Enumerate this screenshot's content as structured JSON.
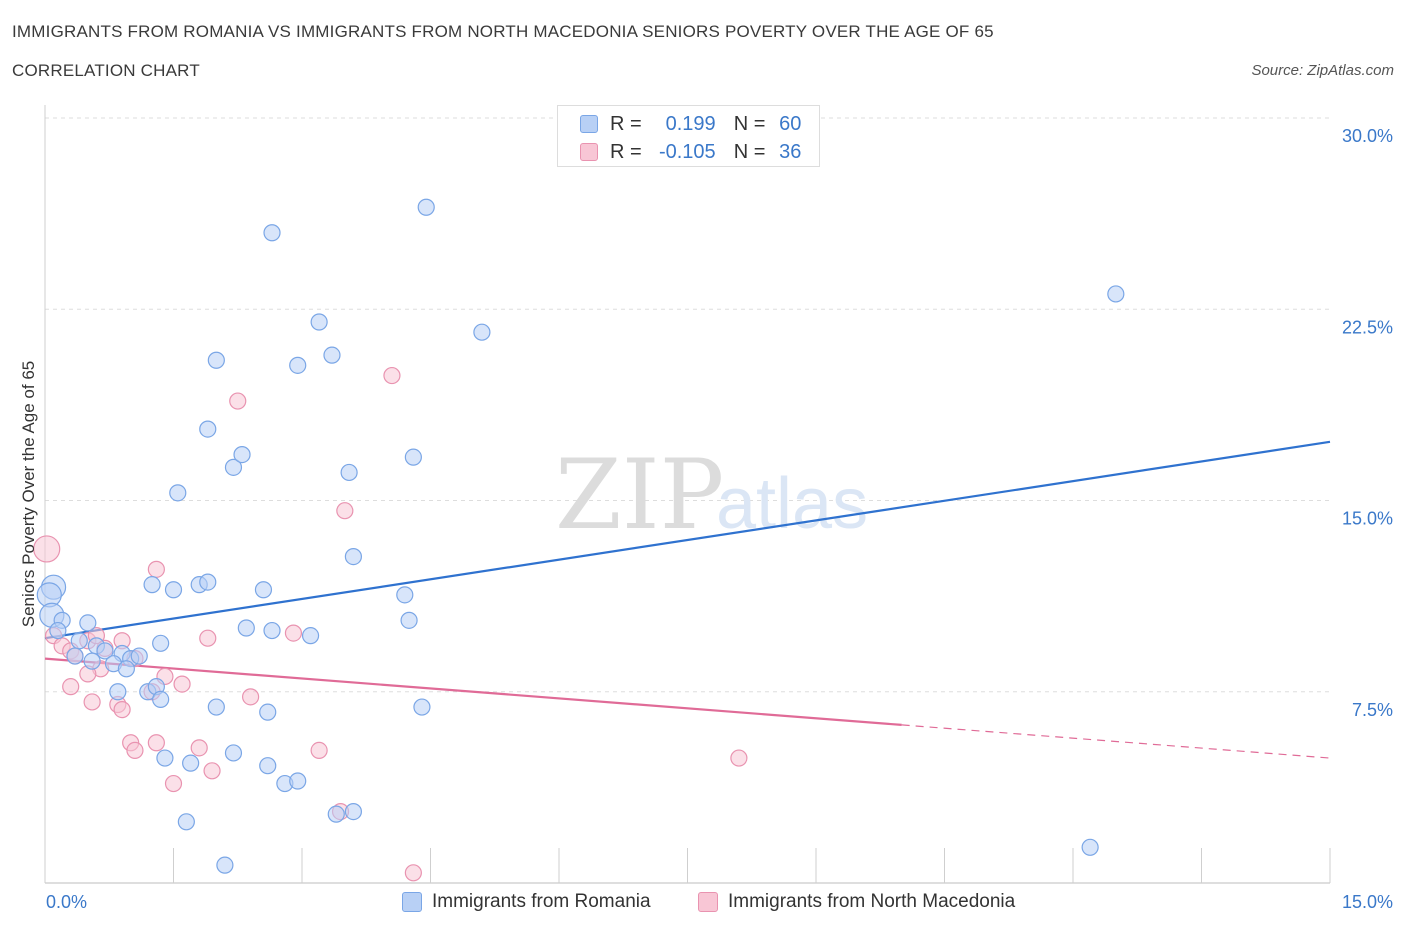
{
  "header": {
    "title": "IMMIGRANTS FROM ROMANIA VS IMMIGRANTS FROM NORTH MACEDONIA SENIORS POVERTY OVER THE AGE OF 65",
    "subtitle": "CORRELATION CHART",
    "source": "Source: ZipAtlas.com"
  },
  "legend": {
    "r_label": "R =",
    "n_label": "N =",
    "series1": {
      "r": "0.199",
      "n": "60"
    },
    "series2": {
      "r": "-0.105",
      "n": "36"
    }
  },
  "colors": {
    "romania_fill": "#b8d0f5",
    "romania_stroke": "#7aa6e6",
    "romania_line": "#2f72cf",
    "macedonia_fill": "#f8c6d5",
    "macedonia_stroke": "#e993b0",
    "macedonia_line": "#e06b97",
    "tick_text": "#3a78c9",
    "grid": "#dddddd"
  },
  "chart_data": {
    "type": "scatter",
    "title": "IMMIGRANTS FROM ROMANIA VS IMMIGRANTS FROM NORTH MACEDONIA SENIORS POVERTY OVER THE AGE OF 65",
    "xlabel": "",
    "ylabel": "Seniors Poverty Over the Age of 65",
    "xlim": [
      0,
      15
    ],
    "ylim": [
      0,
      30
    ],
    "x_tick_labels": [
      "0.0%",
      "15.0%"
    ],
    "y_ticks": [
      7.5,
      15,
      22.5,
      30
    ],
    "y_tick_labels": [
      "7.5%",
      "15.0%",
      "22.5%",
      "30.0%"
    ],
    "watermark": {
      "part1": "ZIP",
      "part2": "atlas"
    },
    "series": [
      {
        "name": "Immigrants from Romania",
        "r": 0.199,
        "n": 60,
        "trend": {
          "x0": 0,
          "y0": 9.6,
          "x1": 15,
          "y1": 17.3
        },
        "points": [
          [
            0.1,
            11.6
          ],
          [
            0.05,
            11.3
          ],
          [
            0.08,
            10.5
          ],
          [
            0.2,
            10.3
          ],
          [
            0.15,
            9.9
          ],
          [
            0.5,
            10.2
          ],
          [
            0.4,
            9.5
          ],
          [
            0.6,
            9.3
          ],
          [
            0.7,
            9.1
          ],
          [
            0.35,
            8.9
          ],
          [
            0.9,
            9.0
          ],
          [
            1.0,
            8.8
          ],
          [
            0.55,
            8.7
          ],
          [
            0.8,
            8.6
          ],
          [
            0.95,
            8.4
          ],
          [
            1.35,
            9.4
          ],
          [
            1.1,
            8.9
          ],
          [
            0.85,
            7.5
          ],
          [
            1.2,
            7.5
          ],
          [
            1.3,
            7.7
          ],
          [
            1.35,
            7.2
          ],
          [
            1.4,
            4.9
          ],
          [
            1.7,
            4.7
          ],
          [
            1.65,
            2.4
          ],
          [
            2.0,
            6.9
          ],
          [
            2.2,
            5.1
          ],
          [
            2.6,
            6.7
          ],
          [
            2.6,
            4.6
          ],
          [
            2.8,
            3.9
          ],
          [
            2.95,
            4.0
          ],
          [
            2.35,
            10.0
          ],
          [
            2.65,
            9.9
          ],
          [
            3.1,
            9.7
          ],
          [
            3.4,
            2.7
          ],
          [
            3.6,
            2.8
          ],
          [
            2.1,
            0.7
          ],
          [
            1.25,
            11.7
          ],
          [
            1.5,
            11.5
          ],
          [
            1.8,
            11.7
          ],
          [
            1.9,
            11.8
          ],
          [
            2.55,
            11.5
          ],
          [
            1.55,
            15.3
          ],
          [
            1.9,
            17.8
          ],
          [
            2.2,
            16.3
          ],
          [
            2.3,
            16.8
          ],
          [
            2.0,
            20.5
          ],
          [
            2.95,
            20.3
          ],
          [
            2.65,
            25.5
          ],
          [
            3.2,
            22.0
          ],
          [
            3.35,
            20.7
          ],
          [
            3.55,
            16.1
          ],
          [
            3.6,
            12.8
          ],
          [
            4.2,
            11.3
          ],
          [
            4.25,
            10.3
          ],
          [
            4.3,
            16.7
          ],
          [
            4.4,
            6.9
          ],
          [
            4.45,
            26.5
          ],
          [
            5.1,
            21.6
          ],
          [
            12.5,
            23.1
          ],
          [
            12.2,
            1.4
          ]
        ]
      },
      {
        "name": "Immigrants from North Macedonia",
        "r": -0.105,
        "n": 36,
        "trend": {
          "x0": 0,
          "y0": 8.8,
          "x1": 10.0,
          "y1": 6.2,
          "dash_to_x": 15,
          "dash_to_y": 4.9
        },
        "points": [
          [
            0.02,
            13.1
          ],
          [
            0.1,
            9.7
          ],
          [
            0.2,
            9.3
          ],
          [
            0.3,
            9.1
          ],
          [
            0.35,
            8.9
          ],
          [
            0.5,
            9.5
          ],
          [
            0.6,
            9.7
          ],
          [
            0.7,
            9.2
          ],
          [
            0.9,
            9.5
          ],
          [
            0.65,
            8.4
          ],
          [
            0.5,
            8.2
          ],
          [
            0.3,
            7.7
          ],
          [
            0.55,
            7.1
          ],
          [
            0.85,
            7.0
          ],
          [
            0.9,
            6.8
          ],
          [
            1.05,
            8.8
          ],
          [
            1.25,
            7.5
          ],
          [
            1.4,
            8.1
          ],
          [
            1.6,
            7.8
          ],
          [
            1.3,
            12.3
          ],
          [
            1.0,
            5.5
          ],
          [
            1.05,
            5.2
          ],
          [
            1.3,
            5.5
          ],
          [
            1.5,
            3.9
          ],
          [
            1.8,
            5.3
          ],
          [
            1.95,
            4.4
          ],
          [
            1.9,
            9.6
          ],
          [
            2.25,
            18.9
          ],
          [
            2.4,
            7.3
          ],
          [
            2.9,
            9.8
          ],
          [
            3.2,
            5.2
          ],
          [
            3.45,
            2.8
          ],
          [
            3.5,
            14.6
          ],
          [
            4.05,
            19.9
          ],
          [
            4.3,
            0.4
          ],
          [
            8.1,
            4.9
          ]
        ]
      }
    ]
  }
}
